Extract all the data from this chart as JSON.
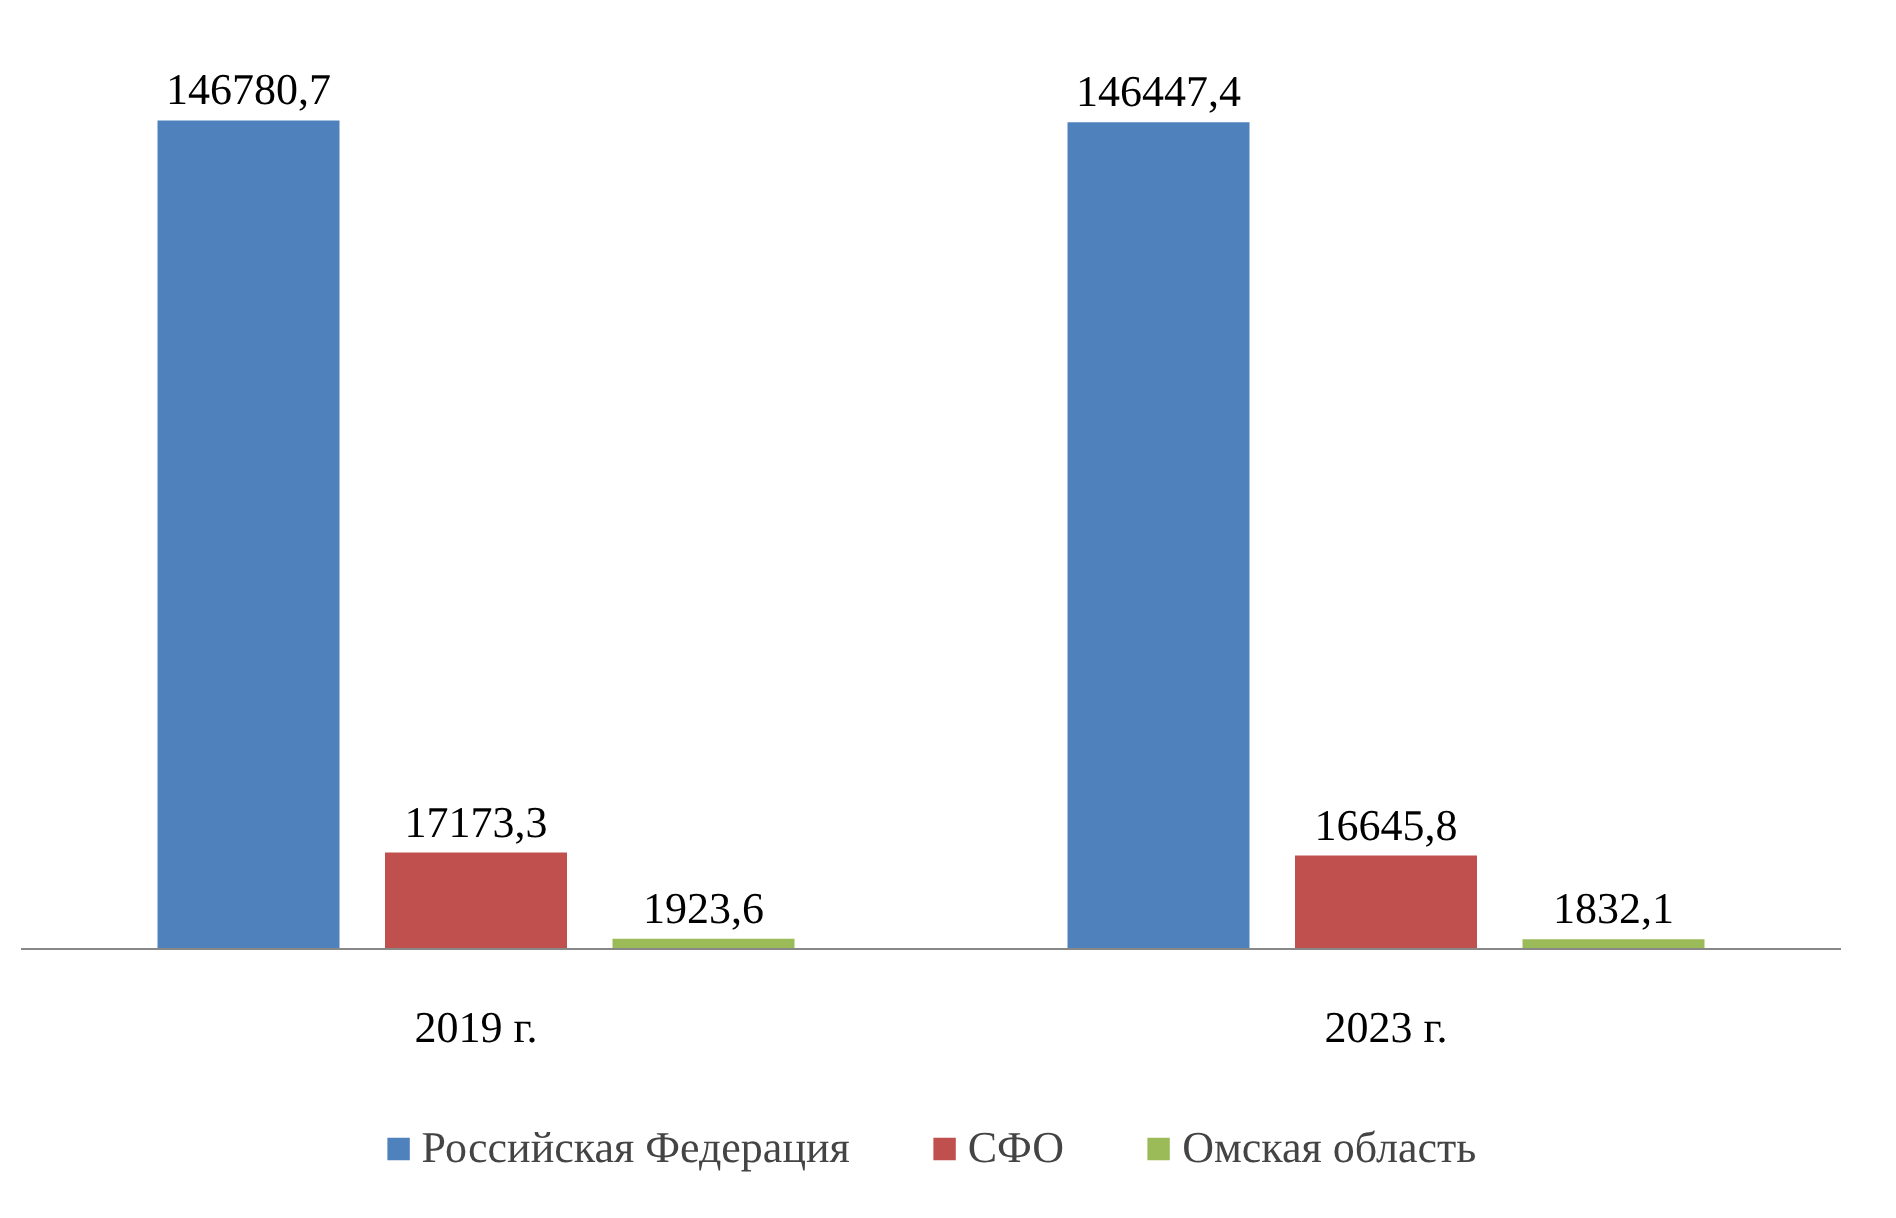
{
  "chart_data": {
    "type": "bar",
    "categories": [
      "2019 г.",
      "2023 г."
    ],
    "series": [
      {
        "name": "Российская Федерация",
        "color": "#4f81bd",
        "values": [
          146780.7,
          146447.4
        ],
        "value_labels": [
          "146780,7",
          "146447,4"
        ]
      },
      {
        "name": "СФО",
        "color": "#c0504d",
        "values": [
          17173.3,
          16645.8
        ],
        "value_labels": [
          "17173,3",
          "16645,8"
        ]
      },
      {
        "name": "Омская область",
        "color": "#9bbb59",
        "values": [
          1923.6,
          1832.1
        ],
        "value_labels": [
          "1923,6",
          "1832,1"
        ]
      }
    ],
    "legend": "bottom",
    "tick_labels": "x",
    "grid": false
  }
}
